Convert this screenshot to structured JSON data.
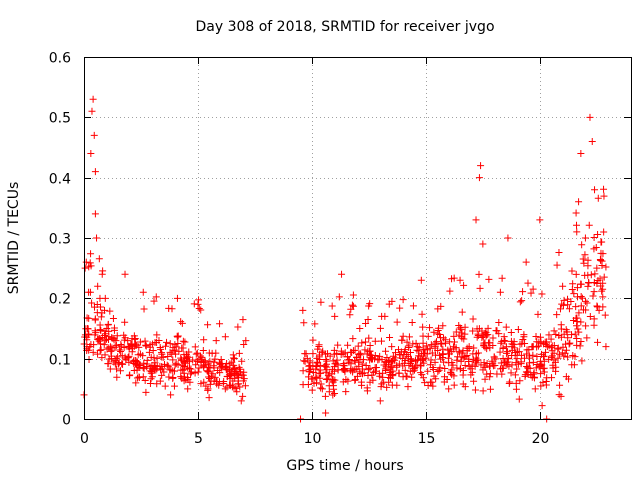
{
  "chart_data": {
    "type": "scatter",
    "title": "Day 308 of 2018, SRMTID for receiver jvgo",
    "xlabel": "GPS time / hours",
    "ylabel": "SRMTID / TECUs",
    "xlim": [
      0,
      24
    ],
    "ylim": [
      0,
      0.6
    ],
    "xticks": [
      0,
      5,
      10,
      15,
      20
    ],
    "xtick_labels": [
      "0",
      "5",
      "10",
      "15",
      "20"
    ],
    "yticks": [
      0,
      0.1,
      0.2,
      0.3,
      0.4,
      0.5,
      0.6
    ],
    "ytick_labels": [
      "0",
      "0.1",
      "0.2",
      "0.3",
      "0.4",
      "0.5",
      "0.6"
    ],
    "grid": true,
    "marker": "plus",
    "series_color": "#ff0000",
    "data_gap_hours": [
      7.2,
      9.5
    ],
    "series": [
      {
        "name": "SRMTID",
        "points": [
          {
            "x": 0.0,
            "y": 0.04
          },
          {
            "x": 0.05,
            "y": 0.25
          },
          {
            "x": 0.1,
            "y": 0.26
          },
          {
            "x": 0.15,
            "y": 0.15
          },
          {
            "x": 0.2,
            "y": 0.21
          },
          {
            "x": 0.25,
            "y": 0.12
          },
          {
            "x": 0.3,
            "y": 0.44
          },
          {
            "x": 0.35,
            "y": 0.51
          },
          {
            "x": 0.4,
            "y": 0.53
          },
          {
            "x": 0.45,
            "y": 0.47
          },
          {
            "x": 0.5,
            "y": 0.41
          },
          {
            "x": 0.5,
            "y": 0.34
          },
          {
            "x": 0.55,
            "y": 0.3
          },
          {
            "x": 0.6,
            "y": 0.22
          },
          {
            "x": 0.7,
            "y": 0.2
          },
          {
            "x": 0.8,
            "y": 0.24
          },
          {
            "x": 0.9,
            "y": 0.18
          },
          {
            "x": 1.0,
            "y": 0.15
          },
          {
            "x": 1.2,
            "y": 0.1
          },
          {
            "x": 1.4,
            "y": 0.13
          },
          {
            "x": 1.6,
            "y": 0.08
          },
          {
            "x": 1.8,
            "y": 0.24
          },
          {
            "x": 2.0,
            "y": 0.12
          },
          {
            "x": 2.3,
            "y": 0.09
          },
          {
            "x": 2.6,
            "y": 0.21
          },
          {
            "x": 3.0,
            "y": 0.07
          },
          {
            "x": 3.4,
            "y": 0.11
          },
          {
            "x": 3.8,
            "y": 0.04
          },
          {
            "x": 4.1,
            "y": 0.2
          },
          {
            "x": 4.5,
            "y": 0.1
          },
          {
            "x": 5.0,
            "y": 0.19
          },
          {
            "x": 5.4,
            "y": 0.08
          },
          {
            "x": 5.8,
            "y": 0.13
          },
          {
            "x": 6.2,
            "y": 0.05
          },
          {
            "x": 6.6,
            "y": 0.1
          },
          {
            "x": 6.9,
            "y": 0.03
          },
          {
            "x": 7.1,
            "y": 0.13
          },
          {
            "x": 9.5,
            "y": 0.0
          },
          {
            "x": 9.6,
            "y": 0.18
          },
          {
            "x": 9.8,
            "y": 0.1
          },
          {
            "x": 10.2,
            "y": 0.06
          },
          {
            "x": 10.6,
            "y": 0.01
          },
          {
            "x": 11.0,
            "y": 0.17
          },
          {
            "x": 11.3,
            "y": 0.24
          },
          {
            "x": 11.7,
            "y": 0.08
          },
          {
            "x": 12.1,
            "y": 0.15
          },
          {
            "x": 12.6,
            "y": 0.1
          },
          {
            "x": 13.0,
            "y": 0.03
          },
          {
            "x": 13.5,
            "y": 0.12
          },
          {
            "x": 14.0,
            "y": 0.07
          },
          {
            "x": 14.4,
            "y": 0.16
          },
          {
            "x": 14.8,
            "y": 0.23
          },
          {
            "x": 15.2,
            "y": 0.09
          },
          {
            "x": 15.6,
            "y": 0.14
          },
          {
            "x": 16.0,
            "y": 0.05
          },
          {
            "x": 16.5,
            "y": 0.23
          },
          {
            "x": 16.9,
            "y": 0.12
          },
          {
            "x": 17.2,
            "y": 0.33
          },
          {
            "x": 17.35,
            "y": 0.4
          },
          {
            "x": 17.4,
            "y": 0.42
          },
          {
            "x": 17.5,
            "y": 0.29
          },
          {
            "x": 17.8,
            "y": 0.07
          },
          {
            "x": 18.2,
            "y": 0.16
          },
          {
            "x": 18.6,
            "y": 0.3
          },
          {
            "x": 19.0,
            "y": 0.1
          },
          {
            "x": 19.4,
            "y": 0.26
          },
          {
            "x": 19.8,
            "y": 0.05
          },
          {
            "x": 20.0,
            "y": 0.33
          },
          {
            "x": 20.3,
            "y": 0.0
          },
          {
            "x": 20.7,
            "y": 0.14
          },
          {
            "x": 21.0,
            "y": 0.22
          },
          {
            "x": 21.4,
            "y": 0.09
          },
          {
            "x": 21.7,
            "y": 0.36
          },
          {
            "x": 21.8,
            "y": 0.44
          },
          {
            "x": 22.0,
            "y": 0.3
          },
          {
            "x": 22.2,
            "y": 0.5
          },
          {
            "x": 22.3,
            "y": 0.46
          },
          {
            "x": 22.4,
            "y": 0.38
          },
          {
            "x": 22.5,
            "y": 0.25
          },
          {
            "x": 22.6,
            "y": 0.18
          },
          {
            "x": 22.8,
            "y": 0.31
          },
          {
            "x": 22.9,
            "y": 0.12
          }
        ],
        "envelope": [
          {
            "x": 0.0,
            "lo": 0.06,
            "hi": 0.26
          },
          {
            "x": 0.5,
            "lo": 0.08,
            "hi": 0.24
          },
          {
            "x": 1.0,
            "lo": 0.05,
            "hi": 0.19
          },
          {
            "x": 2.0,
            "lo": 0.04,
            "hi": 0.17
          },
          {
            "x": 3.0,
            "lo": 0.03,
            "hi": 0.16
          },
          {
            "x": 4.0,
            "lo": 0.04,
            "hi": 0.16
          },
          {
            "x": 5.0,
            "lo": 0.03,
            "hi": 0.15
          },
          {
            "x": 6.0,
            "lo": 0.02,
            "hi": 0.13
          },
          {
            "x": 7.1,
            "lo": 0.03,
            "hi": 0.12
          },
          {
            "x": 9.6,
            "lo": 0.03,
            "hi": 0.15
          },
          {
            "x": 10.5,
            "lo": 0.01,
            "hi": 0.15
          },
          {
            "x": 11.5,
            "lo": 0.03,
            "hi": 0.16
          },
          {
            "x": 12.5,
            "lo": 0.03,
            "hi": 0.15
          },
          {
            "x": 13.5,
            "lo": 0.03,
            "hi": 0.15
          },
          {
            "x": 14.5,
            "lo": 0.03,
            "hi": 0.16
          },
          {
            "x": 15.5,
            "lo": 0.04,
            "hi": 0.17
          },
          {
            "x": 16.5,
            "lo": 0.03,
            "hi": 0.19
          },
          {
            "x": 17.5,
            "lo": 0.02,
            "hi": 0.2
          },
          {
            "x": 18.5,
            "lo": 0.02,
            "hi": 0.19
          },
          {
            "x": 19.5,
            "lo": 0.02,
            "hi": 0.19
          },
          {
            "x": 20.5,
            "lo": 0.0,
            "hi": 0.2
          },
          {
            "x": 21.5,
            "lo": 0.03,
            "hi": 0.3
          },
          {
            "x": 22.3,
            "lo": 0.08,
            "hi": 0.4
          },
          {
            "x": 22.9,
            "lo": 0.1,
            "hi": 0.32
          }
        ],
        "envelope_density_per_hour": 60
      }
    ]
  }
}
